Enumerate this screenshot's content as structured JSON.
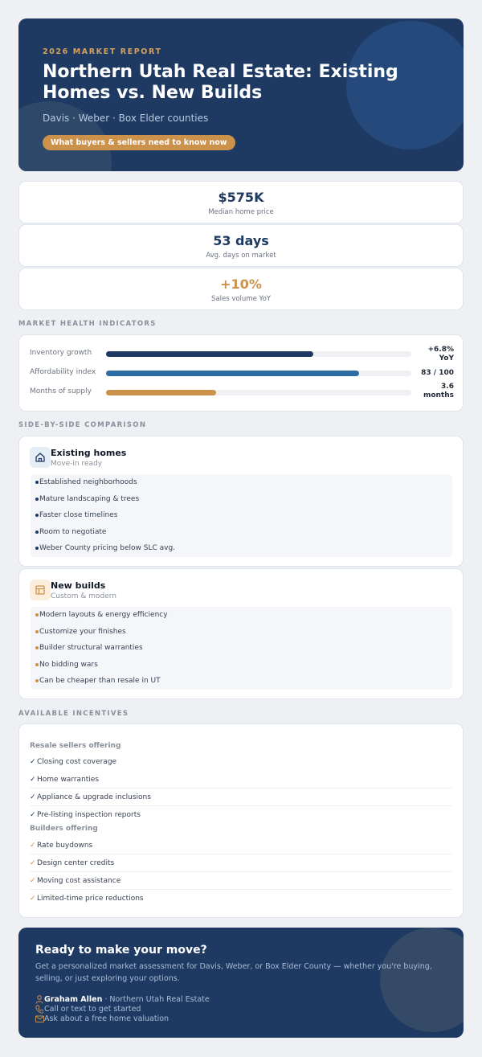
{
  "hero": {
    "kicker": "2026 MARKET REPORT",
    "title": "Northern Utah Real Estate: Existing Homes vs. New Builds",
    "subtitle": "Davis · Weber · Box Elder counties",
    "pill": "What buyers & sellers need to know now"
  },
  "stats": [
    {
      "value": "$575K",
      "label": "Median home price"
    },
    {
      "value": "53 days",
      "label": "Avg. days on market"
    },
    {
      "value": "+10%",
      "label": "Sales volume YoY"
    }
  ],
  "health": {
    "section_label": "MARKET HEALTH INDICATORS",
    "rows": [
      {
        "label": "Inventory growth",
        "value_line1": "+6.8%",
        "value_line2": "YoY",
        "fill_fraction": 0.68,
        "color": "#1e3a63"
      },
      {
        "label": "Affordability index",
        "value_line1": "83 / 100",
        "value_line2": "",
        "fill_fraction": 0.83,
        "color": "#2e6da4"
      },
      {
        "label": "Months of supply",
        "value_line1": "3.6",
        "value_line2": "months",
        "fill_fraction": 0.36,
        "color": "#cc924c"
      }
    ]
  },
  "comparison": {
    "section_label": "SIDE-BY-SIDE COMPARISON",
    "existing": {
      "icon": "home-icon",
      "title": "Existing homes",
      "subtitle": "Move-in ready",
      "bullet_color": "#1e3a63",
      "items": [
        "Established neighborhoods",
        "Mature landscaping & trees",
        "Faster close timelines",
        "Room to negotiate",
        "Weber County pricing below SLC avg."
      ]
    },
    "new": {
      "icon": "blueprint-icon",
      "title": "New builds",
      "subtitle": "Custom & modern",
      "bullet_color": "#cc924c",
      "items": [
        "Modern layouts & energy efficiency",
        "Customize your finishes",
        "Builder structural warranties",
        "No bidding wars",
        "Can be cheaper than resale in UT"
      ]
    }
  },
  "incentives": {
    "section_label": "AVAILABLE INCENTIVES",
    "resale_heading": "Resale sellers offering",
    "resale_items": [
      "Closing cost coverage",
      "Home warranties",
      "Appliance & upgrade inclusions",
      "Pre-listing inspection reports"
    ],
    "builders_heading": "Builders offering",
    "builder_items": [
      "Rate buydowns",
      "Design center credits",
      "Moving cost assistance",
      "Limited-time price reductions"
    ],
    "check": "✓"
  },
  "cta": {
    "title": "Ready to make your move?",
    "body": "Get a personalized market assessment for Davis, Weber, or Box Elder County — whether you're buying, selling, or just exploring your options.",
    "agent_name": "Graham Allen",
    "agent_company": " · Northern Utah Real Estate",
    "phone_line": "Call or text to get started",
    "email_line": "Ask about a free home valuation"
  }
}
